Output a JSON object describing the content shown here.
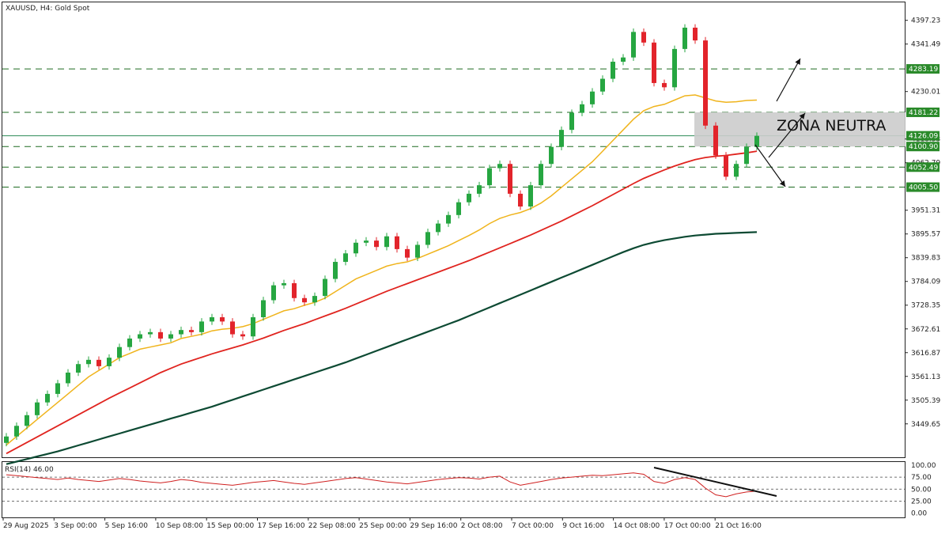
{
  "window": {
    "symbol_title": "XAUUSD, H4:  Gold Spot"
  },
  "annotation": {
    "zone_label": "ZONA NEUTRA"
  },
  "colors": {
    "bull": "#26a641",
    "bear": "#e2242b",
    "ma_fast": "#f0b41c",
    "ma_mid": "#e0241f",
    "ma_slow": "#0d4a33",
    "level_line": "#1e6b21",
    "badge": "#2a8a2a",
    "current_price_line": "#2e8b57",
    "zone": "#cccccc",
    "rsi_line": "#d02020"
  },
  "price_axis": {
    "labels": [
      "4397.23",
      "4341.49",
      "4230.01",
      "4118.53",
      "4062.79",
      "3951.31",
      "3895.57",
      "3839.83",
      "3784.09",
      "3728.35",
      "3672.61",
      "3616.87",
      "3561.13",
      "3505.39",
      "3449.65"
    ]
  },
  "levels": [
    {
      "price": 4283.19,
      "label": "4283.19"
    },
    {
      "price": 4181.22,
      "label": "4181.22"
    },
    {
      "price": 4100.9,
      "label": "4100.90"
    },
    {
      "price": 4052.49,
      "label": "4052.49"
    },
    {
      "price": 4005.5,
      "label": "4005.50"
    }
  ],
  "current_price": {
    "price": 4126.09,
    "label": "4126.09"
  },
  "time_axis": [
    "29 Aug 2025",
    "3 Sep 00:00",
    "5 Sep 16:00",
    "10 Sep 08:00",
    "15 Sep 00:00",
    "17 Sep 16:00",
    "22 Sep 08:00",
    "25 Sep 00:00",
    "29 Sep 16:00",
    "2 Oct 08:00",
    "7 Oct 00:00",
    "9 Oct 16:00",
    "14 Oct 08:00",
    "17 Oct 00:00",
    "21 Oct 16:00"
  ],
  "rsi": {
    "title": "RSI(14) 46.00",
    "axis_labels": [
      "100.00",
      "75.00",
      "50.00",
      "25.00",
      "0.00"
    ],
    "levels": [
      75,
      50,
      25
    ]
  },
  "chart_data": {
    "type": "candlestick",
    "symbol": "XAUUSD",
    "timeframe": "H4",
    "ylim": [
      3400,
      4400
    ],
    "series": [
      {
        "name": "close",
        "values": [
          3420,
          3445,
          3470,
          3500,
          3520,
          3545,
          3570,
          3590,
          3600,
          3585,
          3605,
          3630,
          3650,
          3660,
          3665,
          3650,
          3660,
          3670,
          3665,
          3690,
          3700,
          3690,
          3660,
          3655,
          3700,
          3740,
          3775,
          3780,
          3745,
          3735,
          3750,
          3790,
          3830,
          3850,
          3875,
          3880,
          3865,
          3890,
          3860,
          3840,
          3870,
          3900,
          3920,
          3940,
          3970,
          3990,
          4010,
          4050,
          4060,
          3990,
          3960,
          4010,
          4060,
          4100,
          4140,
          4180,
          4200,
          4230,
          4260,
          4300,
          4310,
          4370,
          4345,
          4250,
          4240,
          4330,
          4380,
          4350,
          4150,
          4080,
          4030,
          4060,
          4100,
          4126
        ]
      },
      {
        "name": "ma_fast",
        "values": [
          3400,
          3420,
          3440,
          3460,
          3480,
          3500,
          3520,
          3540,
          3560,
          3575,
          3590,
          3605,
          3615,
          3625,
          3630,
          3635,
          3640,
          3650,
          3655,
          3660,
          3668,
          3672,
          3674,
          3678,
          3685,
          3695,
          3705,
          3715,
          3720,
          3728,
          3735,
          3745,
          3760,
          3775,
          3790,
          3800,
          3810,
          3820,
          3826,
          3830,
          3838,
          3848,
          3858,
          3868,
          3880,
          3892,
          3905,
          3920,
          3932,
          3940,
          3946,
          3955,
          3968,
          3985,
          4005,
          4025,
          4045,
          4065,
          4090,
          4115,
          4140,
          4165,
          4185,
          4195,
          4200,
          4210,
          4220,
          4222,
          4215,
          4208,
          4205,
          4206,
          4209,
          4210
        ]
      },
      {
        "name": "ma_mid",
        "values": [
          3380,
          3393,
          3406,
          3419,
          3432,
          3445,
          3458,
          3471,
          3484,
          3497,
          3510,
          3522,
          3534,
          3546,
          3558,
          3570,
          3580,
          3590,
          3598,
          3606,
          3614,
          3621,
          3628,
          3635,
          3643,
          3651,
          3660,
          3669,
          3677,
          3685,
          3694,
          3703,
          3712,
          3721,
          3731,
          3741,
          3751,
          3761,
          3770,
          3779,
          3788,
          3797,
          3806,
          3815,
          3824,
          3833,
          3843,
          3853,
          3863,
          3873,
          3883,
          3893,
          3904,
          3915,
          3926,
          3938,
          3950,
          3962,
          3975,
          3988,
          4001,
          4014,
          4026,
          4036,
          4046,
          4055,
          4063,
          4070,
          4075,
          4078,
          4080,
          4083,
          4086,
          4090
        ]
      },
      {
        "name": "ma_slow",
        "values": [
          3355,
          3361,
          3367,
          3373,
          3379,
          3385,
          3392,
          3399,
          3406,
          3413,
          3420,
          3427,
          3434,
          3441,
          3448,
          3455,
          3462,
          3469,
          3476,
          3483,
          3490,
          3498,
          3506,
          3514,
          3522,
          3530,
          3538,
          3546,
          3554,
          3562,
          3570,
          3578,
          3586,
          3594,
          3603,
          3612,
          3621,
          3630,
          3639,
          3648,
          3657,
          3666,
          3675,
          3684,
          3693,
          3703,
          3713,
          3723,
          3733,
          3743,
          3753,
          3763,
          3773,
          3783,
          3793,
          3803,
          3813,
          3823,
          3833,
          3843,
          3853,
          3862,
          3870,
          3876,
          3881,
          3885,
          3889,
          3892,
          3894,
          3896,
          3897,
          3898,
          3899,
          3900
        ]
      },
      {
        "name": "rsi",
        "values": [
          80,
          78,
          76,
          74,
          72,
          70,
          73,
          70,
          68,
          66,
          69,
          72,
          70,
          67,
          65,
          63,
          66,
          70,
          68,
          64,
          62,
          60,
          58,
          61,
          64,
          66,
          68,
          65,
          62,
          60,
          63,
          66,
          69,
          72,
          74,
          71,
          68,
          65,
          63,
          61,
          64,
          67,
          70,
          72,
          74,
          73,
          71,
          75,
          77,
          65,
          58,
          62,
          66,
          70,
          73,
          75,
          77,
          79,
          78,
          80,
          82,
          84,
          81,
          66,
          62,
          70,
          74,
          70,
          52,
          38,
          34,
          40,
          44,
          46
        ]
      }
    ]
  }
}
